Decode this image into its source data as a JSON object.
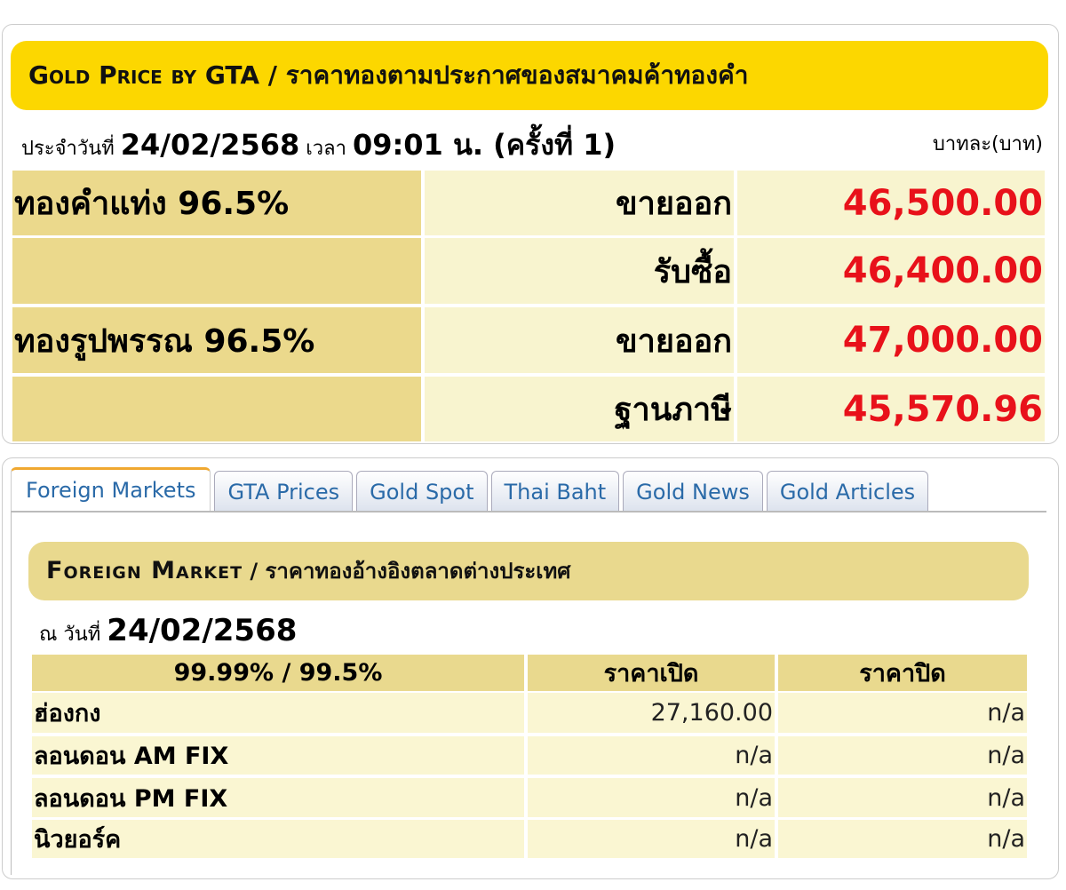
{
  "gta": {
    "title_en": "Gold Price by GTA",
    "title_th": " / ราคาทองตามประกาศของสมาคมค้าทองคำ",
    "date_prefix": "ประจำวันที่ ",
    "date": "24/02/2568",
    "time_prefix": " เวลา ",
    "time": "09:01 น. (ครั้งที่ 1)",
    "unit": "บาทละ(บาท)",
    "rows": [
      {
        "label": "ทองคำแท่ง 96.5%",
        "type": "ขายออก",
        "price": "46,500.00"
      },
      {
        "label": "",
        "type": "รับซื้อ",
        "price": "46,400.00"
      },
      {
        "label": "ทองรูปพรรณ 96.5%",
        "type": "ขายออก",
        "price": "47,000.00"
      },
      {
        "label": "",
        "type": "ฐานภาษี",
        "price": "45,570.96"
      }
    ],
    "price_color": "#E8111A"
  },
  "tabs": [
    "Foreign Markets",
    "GTA Prices",
    "Gold Spot",
    "Thai Baht",
    "Gold News",
    "Gold Articles"
  ],
  "active_tab": "Foreign Markets",
  "foreign": {
    "title_en": "Foreign Market",
    "title_th": " / ราคาทองอ้างอิงตลาดต่างประเทศ",
    "date_prefix": "ณ วันที่ ",
    "date": "24/02/2568",
    "headers": [
      "99.99% / 99.5%",
      "ราคาเปิด",
      "ราคาปิด"
    ],
    "rows": [
      {
        "market": "ฮ่องกง",
        "open": "27,160.00",
        "close": "n/a"
      },
      {
        "market": "ลอนดอน AM FIX",
        "open": "n/a",
        "close": "n/a"
      },
      {
        "market": "ลอนดอน PM FIX",
        "open": "n/a",
        "close": "n/a"
      },
      {
        "market": "นิวยอร์ค",
        "open": "n/a",
        "close": "n/a"
      }
    ]
  }
}
